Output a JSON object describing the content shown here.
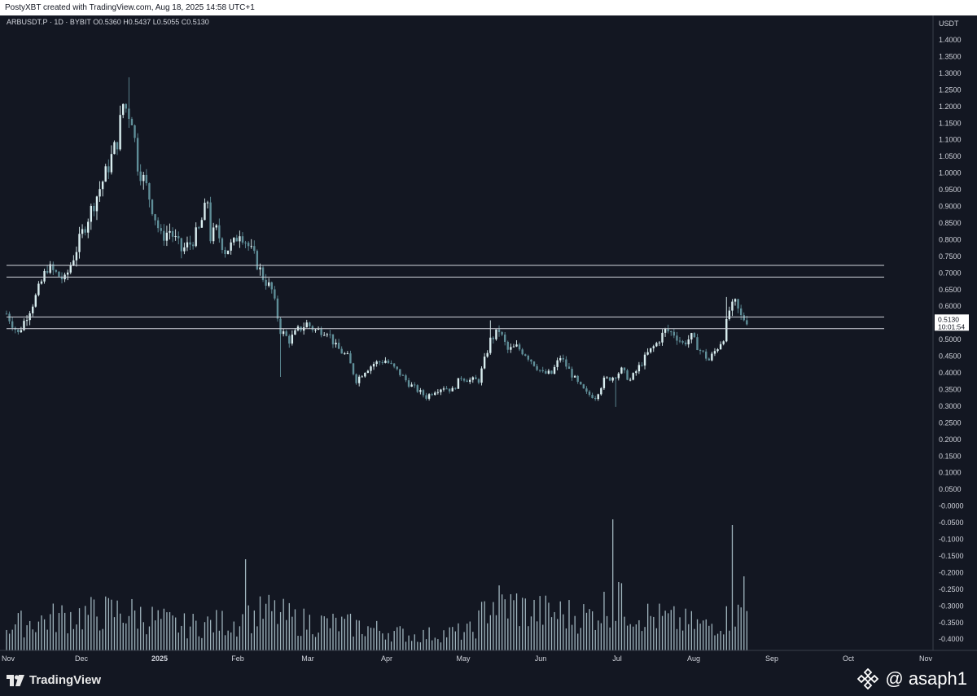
{
  "header": {
    "attribution": "PostyXBT created with TradingView.com, Aug 18, 2025 14:58 UTC+1"
  },
  "footer": {
    "brand": "TradingView",
    "watermark": "@ asaph1"
  },
  "colors": {
    "background": "#131722",
    "candle": "#cfe6ea",
    "candle_up": "#d9eef0",
    "candle_down": "#5f8e98",
    "volume": "#9fb4bd",
    "zone_line": "#d1d4dc",
    "axis_text": "#d1d4dc"
  },
  "chart_data": {
    "type": "candlestick",
    "symbol_line": "ARBUSDT.P · 1D · BYBIT  O0.5360  H0.5437  L0.5055  C0.5130",
    "currency": "USDT",
    "y_ticks": [
      "1.4000",
      "1.3500",
      "1.3000",
      "1.2500",
      "1.2000",
      "1.1500",
      "1.1000",
      "1.0500",
      "1.0000",
      "0.9500",
      "0.9000",
      "0.8500",
      "0.8000",
      "0.7500",
      "0.7000",
      "0.6500",
      "0.6000",
      "0.5500",
      "0.5000",
      "0.4500",
      "0.4000",
      "0.3500",
      "0.3000",
      "0.2500",
      "0.2000",
      "0.1500",
      "0.1000",
      "0.0500",
      "-0.0000",
      "-0.0500",
      "-0.1000",
      "-0.1500",
      "-0.2000",
      "-0.2500",
      "-0.3000",
      "-0.3500",
      "-0.4000"
    ],
    "x_ticks": [
      "Nov",
      "Dec",
      "2025",
      "Feb",
      "Mar",
      "Apr",
      "May",
      "Jun",
      "Jul",
      "Aug",
      "Sep",
      "Oct",
      "Nov"
    ],
    "last_price": "0.5130",
    "countdown": "10:01:54",
    "zones": [
      {
        "low": 0.64,
        "high": 0.675
      },
      {
        "low": 0.485,
        "high": 0.52
      }
    ],
    "anchors": [
      [
        0,
        0.53
      ],
      [
        4,
        0.47
      ],
      [
        10,
        0.58
      ],
      [
        14,
        0.67
      ],
      [
        20,
        0.63
      ],
      [
        28,
        0.82
      ],
      [
        34,
        0.95
      ],
      [
        38,
        1.05
      ],
      [
        40,
        1.16
      ],
      [
        43,
        1.12
      ],
      [
        45,
        0.98
      ],
      [
        48,
        0.91
      ],
      [
        50,
        0.85
      ],
      [
        53,
        0.76
      ],
      [
        56,
        0.78
      ],
      [
        60,
        0.72
      ],
      [
        63,
        0.74
      ],
      [
        66,
        0.78
      ],
      [
        69,
        0.87
      ],
      [
        70,
        0.76
      ],
      [
        72,
        0.78
      ],
      [
        75,
        0.72
      ],
      [
        78,
        0.74
      ],
      [
        80,
        0.78
      ],
      [
        82,
        0.75
      ],
      [
        85,
        0.7
      ],
      [
        88,
        0.64
      ],
      [
        91,
        0.6
      ],
      [
        94,
        0.48
      ],
      [
        97,
        0.45
      ],
      [
        100,
        0.48
      ],
      [
        103,
        0.5
      ],
      [
        106,
        0.48
      ],
      [
        110,
        0.48
      ],
      [
        113,
        0.43
      ],
      [
        117,
        0.4
      ],
      [
        120,
        0.33
      ],
      [
        123,
        0.36
      ],
      [
        126,
        0.38
      ],
      [
        130,
        0.39
      ],
      [
        135,
        0.35
      ],
      [
        138,
        0.32
      ],
      [
        141,
        0.3
      ],
      [
        144,
        0.28
      ],
      [
        147,
        0.3
      ],
      [
        150,
        0.31
      ],
      [
        153,
        0.3
      ],
      [
        156,
        0.34
      ],
      [
        159,
        0.33
      ],
      [
        162,
        0.33
      ],
      [
        166,
        0.45
      ],
      [
        169,
        0.48
      ],
      [
        172,
        0.42
      ],
      [
        175,
        0.43
      ],
      [
        178,
        0.41
      ],
      [
        181,
        0.38
      ],
      [
        184,
        0.35
      ],
      [
        187,
        0.35
      ],
      [
        190,
        0.4
      ],
      [
        193,
        0.36
      ],
      [
        196,
        0.32
      ],
      [
        199,
        0.29
      ],
      [
        202,
        0.28
      ],
      [
        205,
        0.33
      ],
      [
        208,
        0.34
      ],
      [
        211,
        0.36
      ],
      [
        214,
        0.33
      ],
      [
        217,
        0.37
      ],
      [
        220,
        0.41
      ],
      [
        223,
        0.44
      ],
      [
        226,
        0.48
      ],
      [
        229,
        0.47
      ],
      [
        232,
        0.44
      ],
      [
        235,
        0.46
      ],
      [
        238,
        0.42
      ],
      [
        241,
        0.39
      ],
      [
        244,
        0.43
      ],
      [
        246,
        0.46
      ],
      [
        248,
        0.54
      ],
      [
        250,
        0.56
      ],
      [
        252,
        0.52
      ],
      [
        254,
        0.51
      ]
    ],
    "spikes": [
      [
        42,
        1.24
      ],
      [
        94,
        0.34
      ],
      [
        166,
        0.51
      ],
      [
        209,
        0.25
      ],
      [
        247,
        0.58
      ]
    ],
    "volume_anchors": [
      [
        0,
        0.5
      ],
      [
        20,
        0.7
      ],
      [
        40,
        0.8
      ],
      [
        60,
        0.5
      ],
      [
        80,
        0.6
      ],
      [
        90,
        0.8
      ],
      [
        100,
        0.6
      ],
      [
        120,
        0.5
      ],
      [
        140,
        0.3
      ],
      [
        160,
        0.4
      ],
      [
        166,
        1.0
      ],
      [
        180,
        0.8
      ],
      [
        200,
        0.7
      ],
      [
        208,
        1.0
      ],
      [
        220,
        0.7
      ],
      [
        240,
        0.5
      ],
      [
        254,
        0.8
      ]
    ],
    "volume_spikes": [
      [
        82,
        1.6
      ],
      [
        175,
        1.0
      ],
      [
        210,
        1.2
      ],
      [
        208,
        2.3
      ],
      [
        249,
        2.2
      ],
      [
        253,
        1.3
      ]
    ]
  }
}
